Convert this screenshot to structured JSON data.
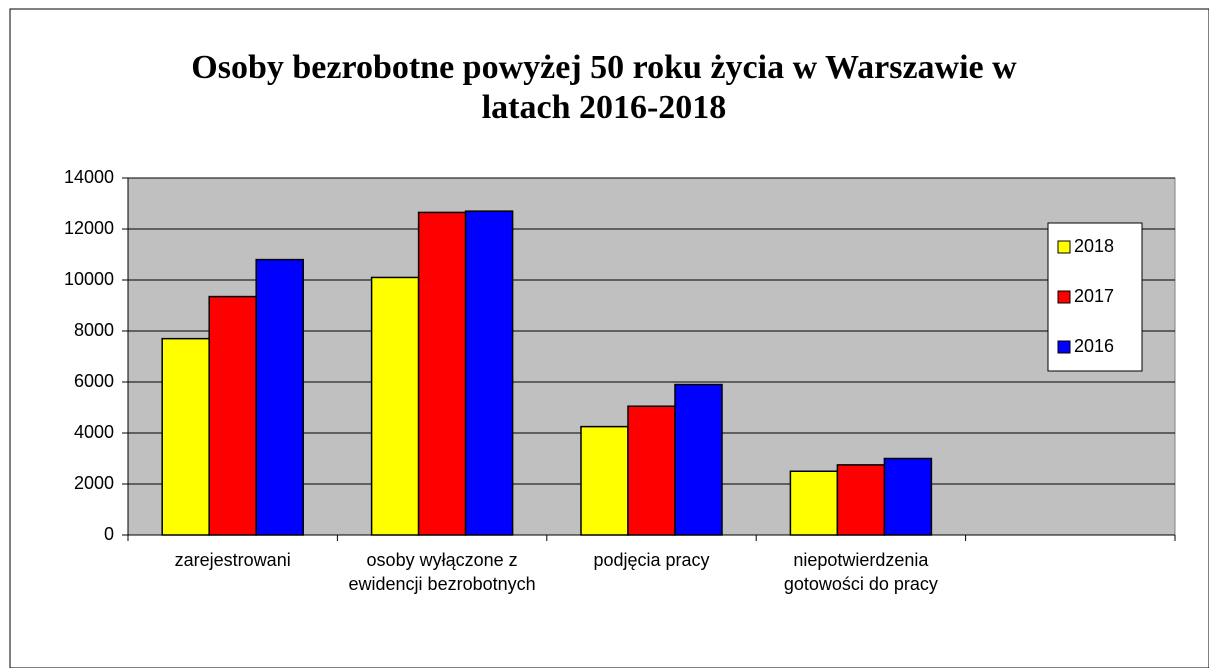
{
  "chart_data": {
    "type": "bar",
    "title": "Osoby bezrobotne powyżej 50 roku życia w Warszawie w latach 2016-2018",
    "categories": [
      "zarejestrowani",
      "osoby wyłączone z ewidencji bezrobotnych",
      "podjęcia pracy",
      "niepotwierdzenia gotowości do pracy",
      null
    ],
    "series": [
      {
        "name": "2018",
        "color": "#ffff00",
        "values": [
          7700,
          10100,
          4250,
          2500,
          null
        ]
      },
      {
        "name": "2017",
        "color": "#ff0000",
        "values": [
          9350,
          12650,
          5050,
          2750,
          null
        ]
      },
      {
        "name": "2016",
        "color": "#0000ff",
        "values": [
          10800,
          12700,
          5900,
          3000,
          null
        ]
      }
    ],
    "ylim": [
      0,
      14000
    ],
    "yticks": [
      0,
      2000,
      4000,
      6000,
      8000,
      10000,
      12000,
      14000
    ],
    "grid": true,
    "legend": "right",
    "plot_background": "#c0c0c0"
  }
}
